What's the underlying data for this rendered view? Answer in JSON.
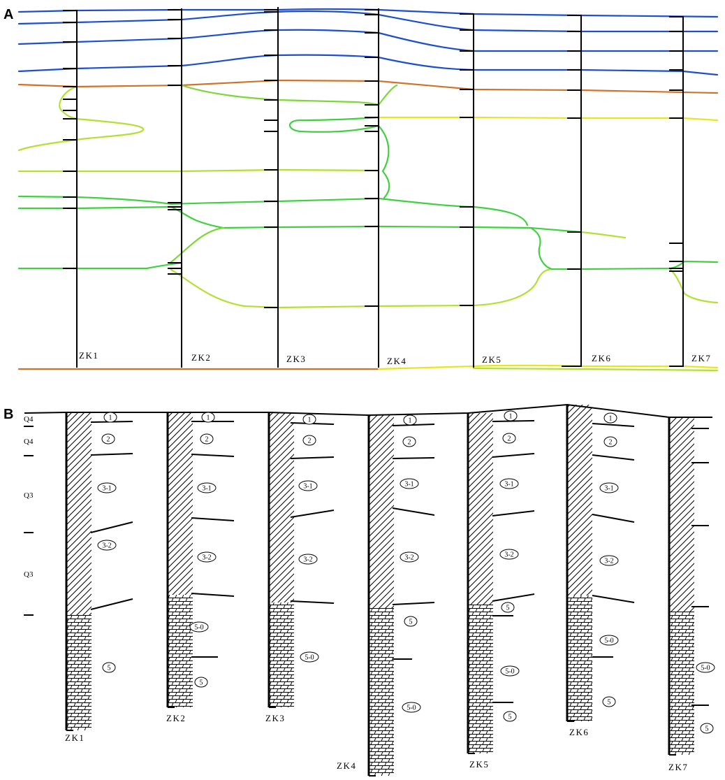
{
  "panels": {
    "a": "A",
    "b": "B"
  },
  "colors": {
    "blue": "#1c4fd0",
    "red": "#d01c1c",
    "orange": "#d0732a",
    "yellow": "#e6e61e",
    "yellow_green": "#b4e032",
    "green": "#3fd13f",
    "cyan": "#2fe6d6",
    "black": "#000000"
  },
  "panel_a": {
    "wells": [
      "ZK1",
      "ZK2",
      "ZK3",
      "ZK4",
      "ZK5",
      "ZK6",
      "ZK7"
    ]
  },
  "panel_b": {
    "strat_labels": [
      "Q4",
      "Q4",
      "Q3",
      "Q3"
    ],
    "wells": [
      {
        "name": "ZK1",
        "layers": [
          "1",
          "2",
          "3-1",
          "3-2",
          "5"
        ]
      },
      {
        "name": "ZK2",
        "layers": [
          "1",
          "2",
          "3-1",
          "3-2",
          "5-0",
          "5"
        ]
      },
      {
        "name": "ZK3",
        "layers": [
          "1",
          "2",
          "3-1",
          "3-2",
          "5-0"
        ]
      },
      {
        "name": "ZK4",
        "layers": [
          "1",
          "2",
          "3-1",
          "3-2",
          "5",
          "5-0"
        ]
      },
      {
        "name": "ZK5",
        "layers": [
          "1",
          "2",
          "3-1",
          "3-2",
          "5",
          "5-0",
          "5"
        ]
      },
      {
        "name": "ZK6",
        "layers": [
          "1",
          "2",
          "3-1",
          "3-2",
          "5-0",
          "5"
        ]
      },
      {
        "name": "ZK7",
        "layers": [
          "5-0",
          "5"
        ]
      }
    ]
  }
}
